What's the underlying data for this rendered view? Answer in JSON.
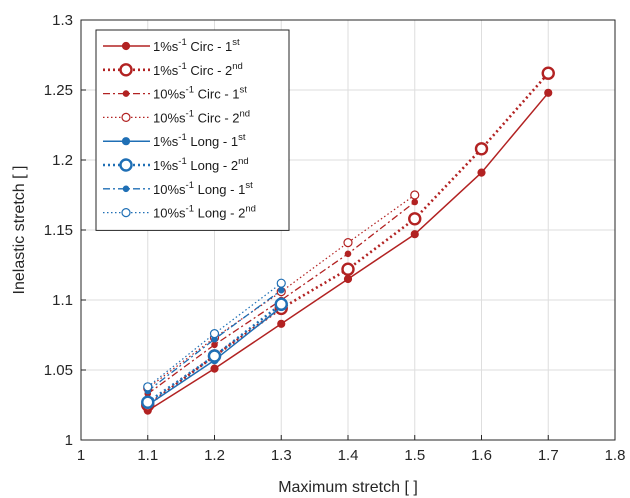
{
  "chart_data": {
    "type": "line",
    "xlabel": "Maximum stretch [ ]",
    "ylabel": "Inelastic stretch [ ]",
    "xlim": [
      1,
      1.8
    ],
    "ylim": [
      1,
      1.3
    ],
    "xticks": [
      "1",
      "1.1",
      "1.2",
      "1.3",
      "1.4",
      "1.5",
      "1.6",
      "1.7",
      "1.8"
    ],
    "yticks": [
      "1",
      "1.05",
      "1.1",
      "1.15",
      "1.2",
      "1.25",
      "1.3"
    ],
    "grid": true,
    "legend_position": "top-left",
    "series": [
      {
        "label_pre": "1%s",
        "label_unit_sup": "-1",
        "label_mid": " Circ - 1",
        "label_ord_sup": "st",
        "color": "#b22222",
        "line": "solid",
        "marker": "dot",
        "x": [
          1.1,
          1.2,
          1.3,
          1.4,
          1.5,
          1.6,
          1.7
        ],
        "y": [
          1.021,
          1.051,
          1.083,
          1.115,
          1.147,
          1.191,
          1.248
        ]
      },
      {
        "label_pre": "1%s",
        "label_unit_sup": "-1",
        "label_mid": " Circ - 2",
        "label_ord_sup": "nd",
        "color": "#b22222",
        "line": "dotted-bold",
        "marker": "ring-large",
        "x": [
          1.1,
          1.2,
          1.3,
          1.4,
          1.5,
          1.6,
          1.7
        ],
        "y": [
          1.025,
          1.06,
          1.094,
          1.122,
          1.158,
          1.208,
          1.262
        ]
      },
      {
        "label_pre": "10%s",
        "label_unit_sup": "-1",
        "label_mid": " Circ - 1",
        "label_ord_sup": "st",
        "color": "#b22222",
        "line": "dashdot",
        "marker": "dot-small",
        "x": [
          1.1,
          1.2,
          1.3,
          1.4,
          1.5
        ],
        "y": [
          1.033,
          1.068,
          1.1,
          1.133,
          1.17
        ]
      },
      {
        "label_pre": "10%s",
        "label_unit_sup": "-1",
        "label_mid": " Circ - 2",
        "label_ord_sup": "nd",
        "color": "#b22222",
        "line": "dotted",
        "marker": "ring-small",
        "x": [
          1.1,
          1.2,
          1.3,
          1.4,
          1.5
        ],
        "y": [
          1.037,
          1.073,
          1.106,
          1.141,
          1.175
        ]
      },
      {
        "label_pre": "1%s",
        "label_unit_sup": "-1",
        "label_mid": " Long - 1",
        "label_ord_sup": "st",
        "color": "#1f6fb5",
        "line": "solid",
        "marker": "dot",
        "x": [
          1.1,
          1.2,
          1.3
        ],
        "y": [
          1.025,
          1.057,
          1.095
        ]
      },
      {
        "label_pre": "1%s",
        "label_unit_sup": "-1",
        "label_mid": " Long - 2",
        "label_ord_sup": "nd",
        "color": "#1f6fb5",
        "line": "dotted-bold",
        "marker": "ring-large",
        "x": [
          1.1,
          1.2,
          1.3
        ],
        "y": [
          1.027,
          1.06,
          1.097
        ]
      },
      {
        "label_pre": "10%s",
        "label_unit_sup": "-1",
        "label_mid": " Long - 1",
        "label_ord_sup": "st",
        "color": "#1f6fb5",
        "line": "dashdot",
        "marker": "dot-small",
        "x": [
          1.1,
          1.2,
          1.3
        ],
        "y": [
          1.035,
          1.072,
          1.107
        ]
      },
      {
        "label_pre": "10%s",
        "label_unit_sup": "-1",
        "label_mid": " Long - 2",
        "label_ord_sup": "nd",
        "color": "#1f6fb5",
        "line": "dotted",
        "marker": "ring-small",
        "x": [
          1.1,
          1.2,
          1.3
        ],
        "y": [
          1.038,
          1.076,
          1.112
        ]
      }
    ]
  }
}
